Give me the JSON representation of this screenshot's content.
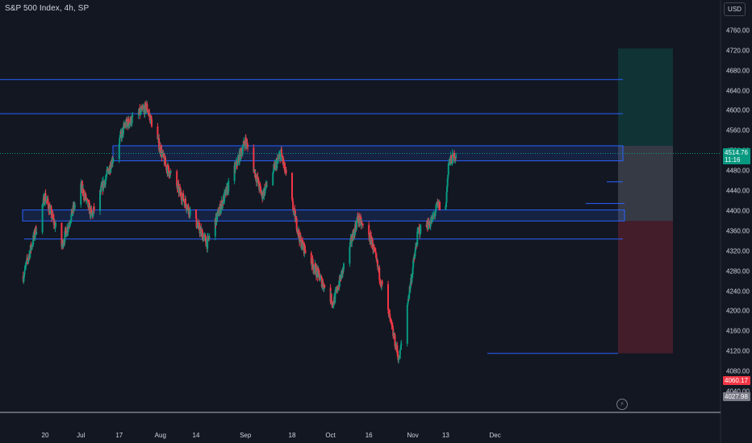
{
  "header": {
    "symbol": "S&P 500 Index, 4h, SP",
    "currency": "USD"
  },
  "price_labels": {
    "current_price": "4514.76",
    "countdown": "11:16",
    "red_label": "4060.17",
    "gray_label": "4027.98"
  },
  "icons": {
    "replay": "lightning-icon"
  },
  "colors": {
    "background": "#131722",
    "up": "#089981",
    "down": "#f23645",
    "level_line": "#2962ff",
    "zone_fill": "rgba(41,98,255,0.15)",
    "profit_zone": "rgba(8,153,129,0.22)",
    "loss_zone": "rgba(242,54,69,0.22)",
    "entry_zone": "rgba(120,123,134,0.35)"
  },
  "chart_data": {
    "type": "candlestick",
    "title": "S&P 500 Index, 4h, SP",
    "timeframe": "4h",
    "currency": "USD",
    "ylim": [
      3980,
      4800
    ],
    "y_ticks": [
      4040,
      4080,
      4120,
      4160,
      4200,
      4240,
      4280,
      4320,
      4360,
      4400,
      4440,
      4480,
      4520,
      4560,
      4600,
      4640,
      4680,
      4720,
      4760
    ],
    "y_tick_labels": [
      "4040.00",
      "4080.00",
      "4120.00",
      "4160.00",
      "4200.00",
      "4240.00",
      "4280.00",
      "4320.00",
      "4360.00",
      "4400.00",
      "4440.00",
      "4480.00",
      "4520.00",
      "4560.00",
      "4600.00",
      "4640.00",
      "4680.00",
      "4720.00",
      "4760.00"
    ],
    "x_tick_labels": [
      "20",
      "Jul",
      "17",
      "Aug",
      "14",
      "Sep",
      "18",
      "Oct",
      "16",
      "Nov",
      "13",
      "Dec"
    ],
    "grid": false,
    "horizontal_levels": [
      4662,
      4594,
      4344,
      4116
    ],
    "zones": [
      {
        "low": 4500,
        "high": 4530
      },
      {
        "low": 4380,
        "high": 4402
      }
    ],
    "position": {
      "type": "long",
      "target": 4724,
      "entry": 4530,
      "stop": 4116
    },
    "key_points": [
      {
        "date": "2023-06-12",
        "price": 4270
      },
      {
        "date": "2023-06-20",
        "price": 4430
      },
      {
        "date": "2023-06-26",
        "price": 4330
      },
      {
        "date": "2023-07-03",
        "price": 4450
      },
      {
        "date": "2023-07-07",
        "price": 4390
      },
      {
        "date": "2023-07-19",
        "price": 4570
      },
      {
        "date": "2023-07-27",
        "price": 4607
      },
      {
        "date": "2023-08-03",
        "price": 4490
      },
      {
        "date": "2023-08-18",
        "price": 4335
      },
      {
        "date": "2023-09-01",
        "price": 4541
      },
      {
        "date": "2023-09-07",
        "price": 4430
      },
      {
        "date": "2023-09-14",
        "price": 4515
      },
      {
        "date": "2023-09-21",
        "price": 4340
      },
      {
        "date": "2023-10-03",
        "price": 4216
      },
      {
        "date": "2023-10-12",
        "price": 4385
      },
      {
        "date": "2023-10-17",
        "price": 4340
      },
      {
        "date": "2023-10-27",
        "price": 4103
      },
      {
        "date": "2023-11-03",
        "price": 4360
      },
      {
        "date": "2023-11-08",
        "price": 4380
      },
      {
        "date": "2023-11-10",
        "price": 4412
      },
      {
        "date": "2023-11-13",
        "price": 4405
      },
      {
        "date": "2023-11-14",
        "price": 4495
      },
      {
        "date": "2023-11-17",
        "price": 4514.76
      }
    ]
  }
}
